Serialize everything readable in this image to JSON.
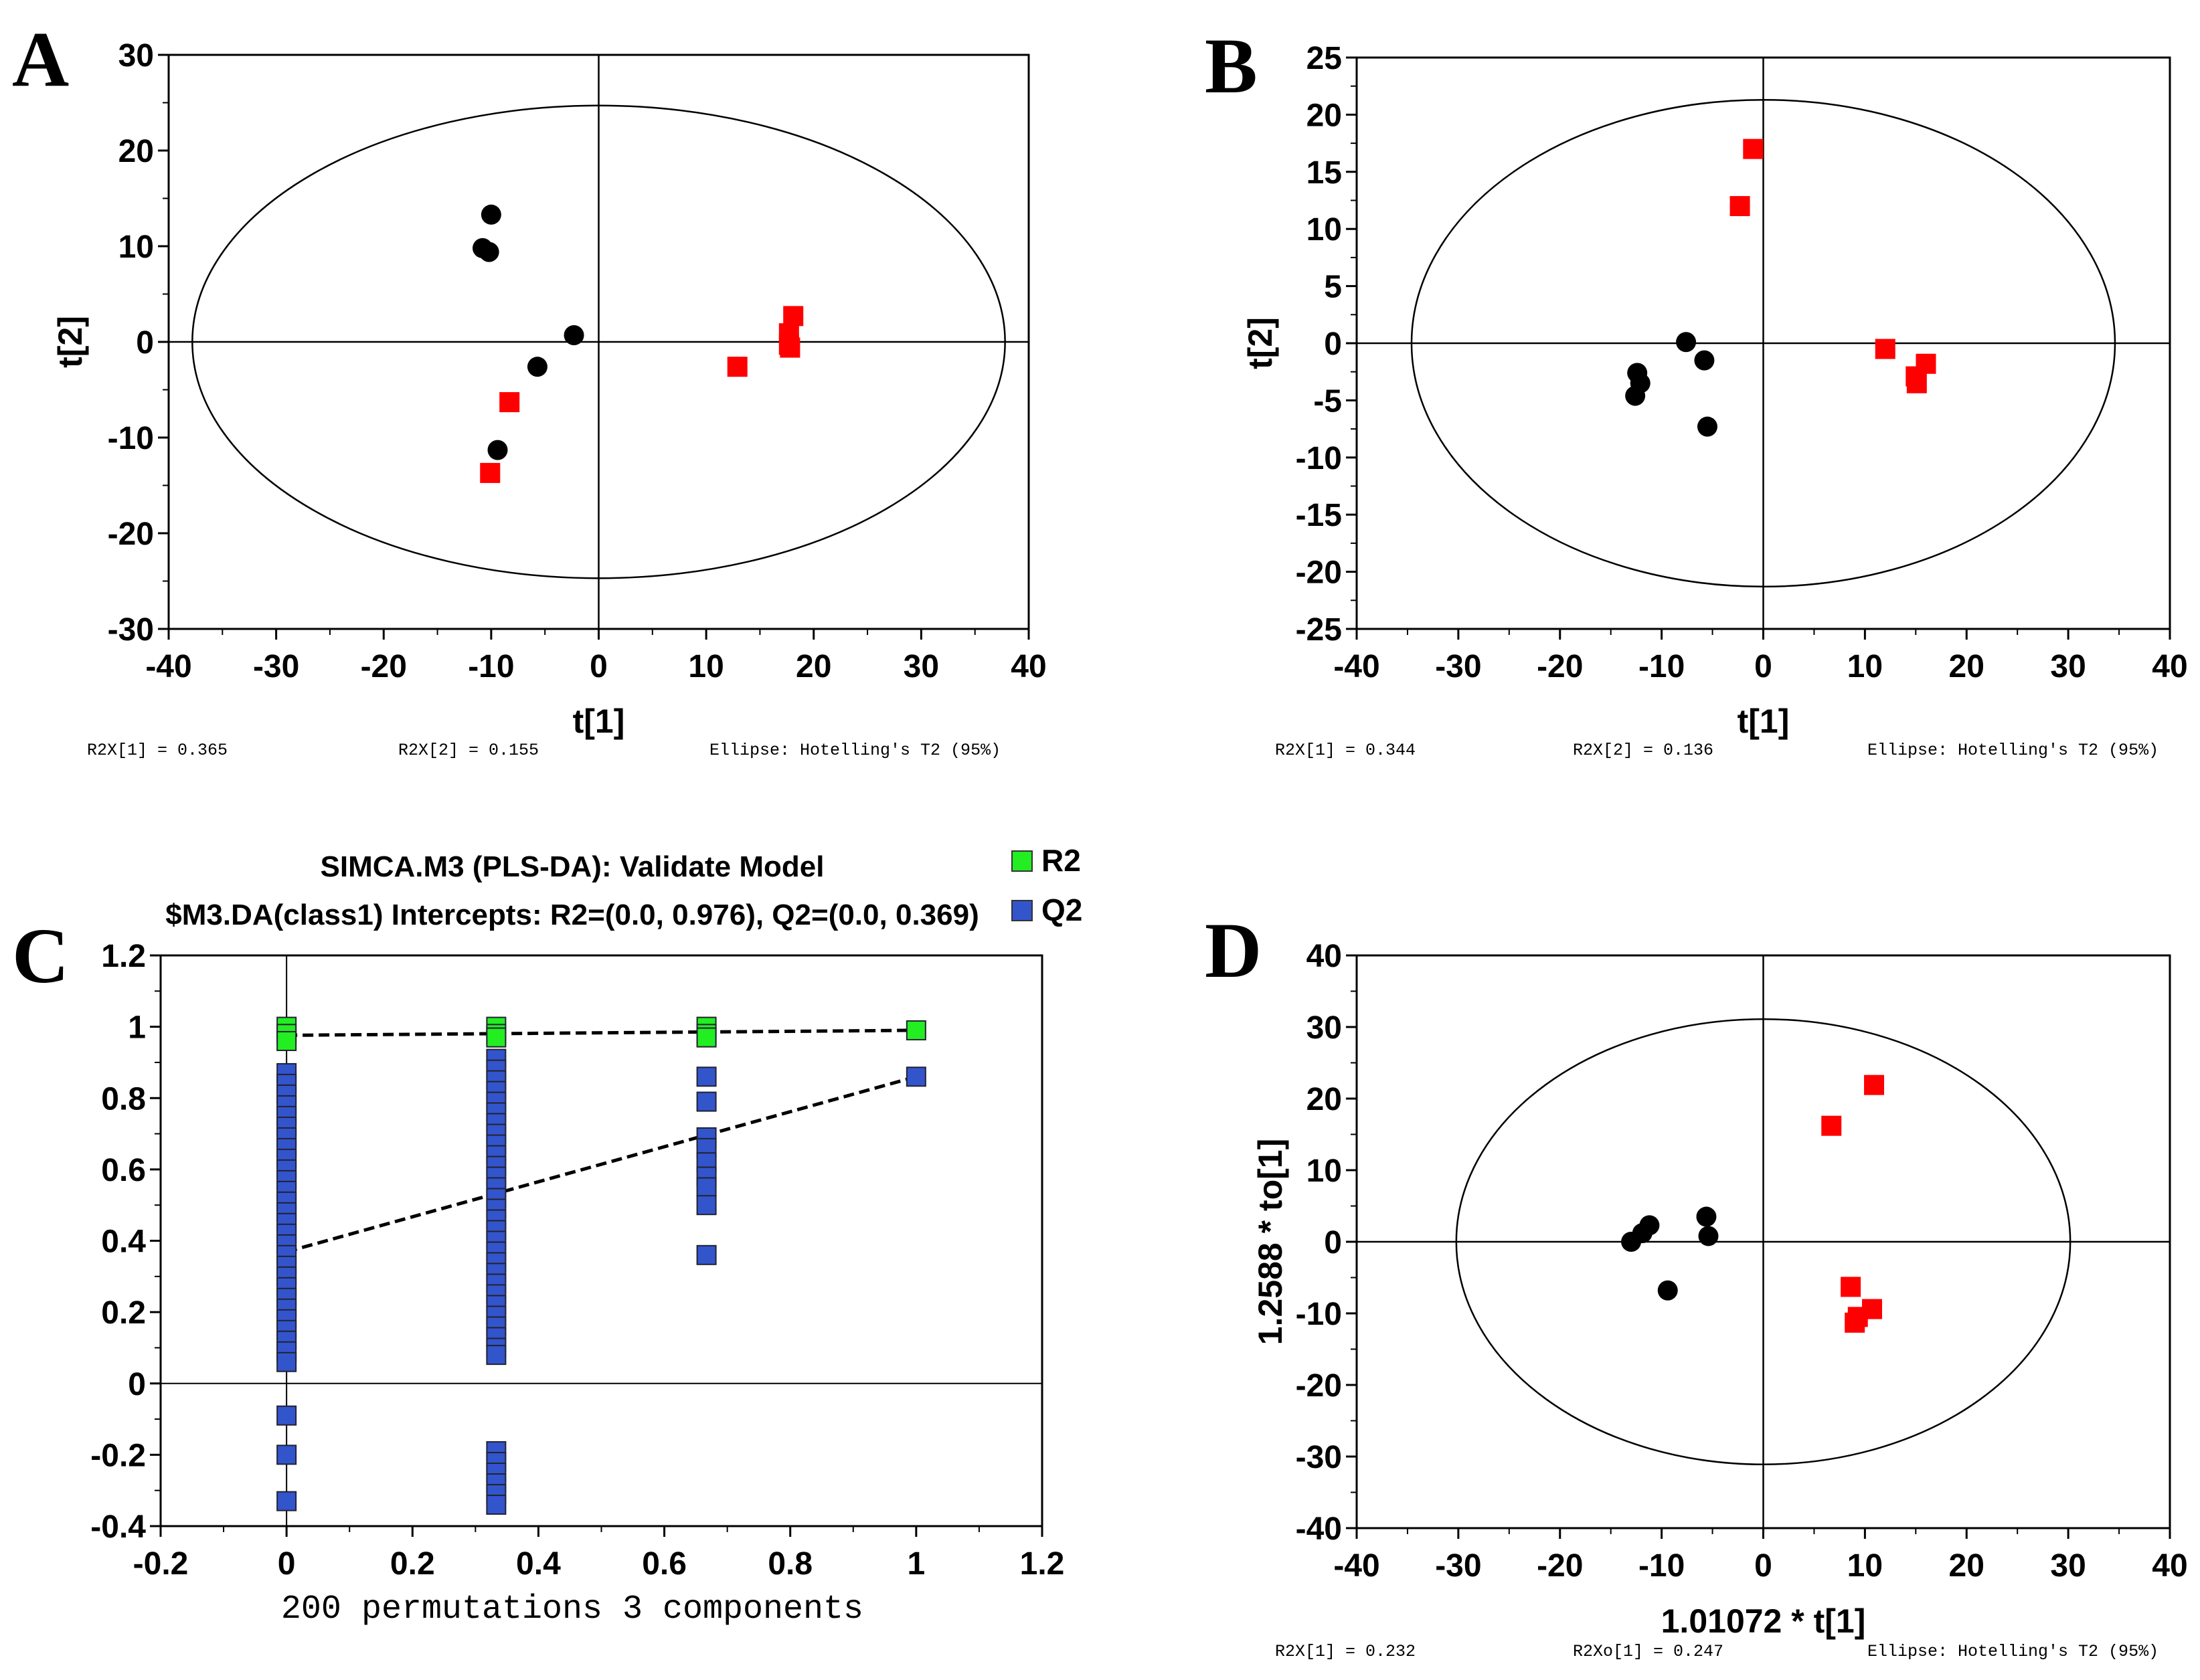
{
  "colors": {
    "group_black": "#000000",
    "group_red": "#ff0000",
    "r2_green": "#22ee22",
    "q2_blue": "#3355cc"
  },
  "panel_labels": [
    "A",
    "B",
    "C",
    "D"
  ],
  "chart_data": [
    {
      "id": "A",
      "type": "scatter",
      "xlabel": "t[1]",
      "ylabel": "t[2]",
      "xlim": [
        -40,
        40
      ],
      "ylim": [
        -30,
        30
      ],
      "xticks": [
        -40,
        -30,
        -20,
        -10,
        0,
        10,
        20,
        30,
        40
      ],
      "yticks": [
        -30,
        -20,
        -10,
        0,
        10,
        20,
        30
      ],
      "ellipse": {
        "rx": 37.8,
        "ry": 24.7
      },
      "series": [
        {
          "name": "group1",
          "marker": "circle",
          "color": "#000000",
          "points": [
            [
              -10,
              13.3
            ],
            [
              -10.8,
              9.8
            ],
            [
              -10.2,
              9.4
            ],
            [
              -2.3,
              0.7
            ],
            [
              -5.7,
              -2.6
            ],
            [
              -9.4,
              -11.3
            ]
          ]
        },
        {
          "name": "group2",
          "marker": "square",
          "color": "#ff0000",
          "points": [
            [
              18.1,
              2.7
            ],
            [
              17.7,
              0.9
            ],
            [
              17.7,
              -0.3
            ],
            [
              17.8,
              -0.6
            ],
            [
              12.9,
              -2.6
            ],
            [
              -8.3,
              -6.3
            ],
            [
              -10.1,
              -13.7
            ]
          ]
        }
      ],
      "footer": [
        "R2X[1] = 0.365",
        "R2X[2] = 0.155",
        "Ellipse: Hotelling's T2 (95%)"
      ]
    },
    {
      "id": "B",
      "type": "scatter",
      "xlabel": "t[1]",
      "ylabel": "t[2]",
      "xlim": [
        -40,
        40
      ],
      "ylim": [
        -25,
        25
      ],
      "xticks": [
        -40,
        -30,
        -20,
        -10,
        0,
        10,
        20,
        30,
        40
      ],
      "yticks": [
        -25,
        -20,
        -15,
        -10,
        -5,
        0,
        5,
        10,
        15,
        20,
        25
      ],
      "ellipse": {
        "rx": 34.6,
        "ry": 21.3
      },
      "series": [
        {
          "name": "group1",
          "marker": "circle",
          "color": "#000000",
          "points": [
            [
              -7.6,
              0.1
            ],
            [
              -12.4,
              -2.6
            ],
            [
              -12.1,
              -3.5
            ],
            [
              -12.6,
              -4.6
            ],
            [
              -5.8,
              -1.5
            ],
            [
              -5.5,
              -7.3
            ]
          ]
        },
        {
          "name": "group2",
          "marker": "square",
          "color": "#ff0000",
          "points": [
            [
              -1.0,
              17.0
            ],
            [
              -2.3,
              12.0
            ],
            [
              12.0,
              -0.5
            ],
            [
              16.0,
              -1.8
            ],
            [
              15.0,
              -2.9
            ],
            [
              15.1,
              -3.5
            ]
          ]
        }
      ],
      "footer": [
        "R2X[1] = 0.344",
        "R2X[2] = 0.136",
        "Ellipse: Hotelling's T2 (95%)"
      ]
    },
    {
      "id": "C",
      "type": "scatter",
      "title": "SIMCA.M3 (PLS-DA): Validate Model",
      "subtitle": "$M3.DA(class1) Intercepts: R2=(0.0, 0.976), Q2=(0.0, 0.369)",
      "xlabel": "200 permutations 3 components",
      "xlim": [
        -0.2,
        1.2
      ],
      "ylim": [
        -0.4,
        1.2
      ],
      "xticks": [
        -0.2,
        0,
        0.2,
        0.4,
        0.6,
        0.8,
        1,
        1.2
      ],
      "yticks": [
        -0.4,
        -0.2,
        0,
        0.2,
        0.4,
        0.6,
        0.8,
        1,
        1.2
      ],
      "legend": [
        "R2",
        "Q2"
      ],
      "series": [
        {
          "name": "R2",
          "color": "#22ee22",
          "points": [
            [
              0,
              1.0
            ],
            [
              0,
              0.98
            ],
            [
              0,
              0.96
            ],
            [
              0.333,
              1.0
            ],
            [
              0.333,
              0.98
            ],
            [
              0.333,
              0.97
            ],
            [
              0.667,
              1.0
            ],
            [
              0.667,
              0.98
            ],
            [
              0.667,
              0.97
            ],
            [
              1,
              0.99
            ]
          ]
        },
        {
          "name": "Q2",
          "color": "#3355cc",
          "points": [
            [
              0,
              0.87
            ],
            [
              0,
              0.84
            ],
            [
              0,
              0.81
            ],
            [
              0,
              0.78
            ],
            [
              0,
              0.75
            ],
            [
              0,
              0.72
            ],
            [
              0,
              0.69
            ],
            [
              0,
              0.66
            ],
            [
              0,
              0.63
            ],
            [
              0,
              0.6
            ],
            [
              0,
              0.57
            ],
            [
              0,
              0.54
            ],
            [
              0,
              0.51
            ],
            [
              0,
              0.48
            ],
            [
              0,
              0.45
            ],
            [
              0,
              0.42
            ],
            [
              0,
              0.39
            ],
            [
              0,
              0.36
            ],
            [
              0,
              0.33
            ],
            [
              0,
              0.3
            ],
            [
              0,
              0.27
            ],
            [
              0,
              0.24
            ],
            [
              0,
              0.21
            ],
            [
              0,
              0.18
            ],
            [
              0,
              0.15
            ],
            [
              0,
              0.12
            ],
            [
              0,
              0.09
            ],
            [
              0,
              0.06
            ],
            [
              0,
              -0.09
            ],
            [
              0,
              -0.2
            ],
            [
              0,
              -0.33
            ],
            [
              0.333,
              0.91
            ],
            [
              0.333,
              0.88
            ],
            [
              0.333,
              0.85
            ],
            [
              0.333,
              0.82
            ],
            [
              0.333,
              0.79
            ],
            [
              0.333,
              0.76
            ],
            [
              0.333,
              0.73
            ],
            [
              0.333,
              0.7
            ],
            [
              0.333,
              0.67
            ],
            [
              0.333,
              0.64
            ],
            [
              0.333,
              0.61
            ],
            [
              0.333,
              0.58
            ],
            [
              0.333,
              0.55
            ],
            [
              0.333,
              0.52
            ],
            [
              0.333,
              0.49
            ],
            [
              0.333,
              0.46
            ],
            [
              0.333,
              0.43
            ],
            [
              0.333,
              0.4
            ],
            [
              0.333,
              0.37
            ],
            [
              0.333,
              0.34
            ],
            [
              0.333,
              0.31
            ],
            [
              0.333,
              0.28
            ],
            [
              0.333,
              0.25
            ],
            [
              0.333,
              0.22
            ],
            [
              0.333,
              0.19
            ],
            [
              0.333,
              0.16
            ],
            [
              0.333,
              0.13
            ],
            [
              0.333,
              0.1
            ],
            [
              0.333,
              0.08
            ],
            [
              0.333,
              -0.19
            ],
            [
              0.333,
              -0.22
            ],
            [
              0.333,
              -0.25
            ],
            [
              0.333,
              -0.28
            ],
            [
              0.333,
              -0.31
            ],
            [
              0.333,
              -0.34
            ],
            [
              0.667,
              0.86
            ],
            [
              0.667,
              0.79
            ],
            [
              0.667,
              0.69
            ],
            [
              0.667,
              0.66
            ],
            [
              0.667,
              0.62
            ],
            [
              0.667,
              0.58
            ],
            [
              0.667,
              0.55
            ],
            [
              0.667,
              0.5
            ],
            [
              0.667,
              0.36
            ],
            [
              1,
              0.86
            ]
          ]
        }
      ],
      "regression_lines": [
        {
          "name": "R2",
          "from": [
            0,
            0.976
          ],
          "to": [
            1,
            0.99
          ]
        },
        {
          "name": "Q2",
          "from": [
            0,
            0.369
          ],
          "to": [
            1,
            0.86
          ]
        }
      ]
    },
    {
      "id": "D",
      "type": "scatter",
      "xlabel": "1.01072 * t[1]",
      "ylabel": "1.2588 * to[1]",
      "xlim": [
        -40,
        40
      ],
      "ylim": [
        -40,
        40
      ],
      "xticks": [
        -40,
        -30,
        -20,
        -10,
        0,
        10,
        20,
        30,
        40
      ],
      "yticks": [
        -40,
        -30,
        -20,
        -10,
        0,
        10,
        20,
        30,
        40
      ],
      "ellipse": {
        "rx": 30.2,
        "ry": 31.1
      },
      "series": [
        {
          "name": "group1",
          "marker": "circle",
          "color": "#000000",
          "points": [
            [
              -13.0,
              0
            ],
            [
              -11.9,
              1.2
            ],
            [
              -11.2,
              2.3
            ],
            [
              -5.6,
              3.5
            ],
            [
              -5.4,
              0.8
            ],
            [
              -9.4,
              -6.8
            ]
          ]
        },
        {
          "name": "group2",
          "marker": "square",
          "color": "#ff0000",
          "points": [
            [
              10.9,
              21.9
            ],
            [
              6.7,
              16.2
            ],
            [
              8.6,
              -6.3
            ],
            [
              10.7,
              -9.4
            ],
            [
              9.3,
              -10.5
            ],
            [
              9.0,
              -11.3
            ]
          ]
        }
      ],
      "footer": [
        "R2X[1] = 0.232",
        "R2Xo[1] = 0.247",
        "Ellipse: Hotelling's T2 (95%)"
      ]
    }
  ]
}
